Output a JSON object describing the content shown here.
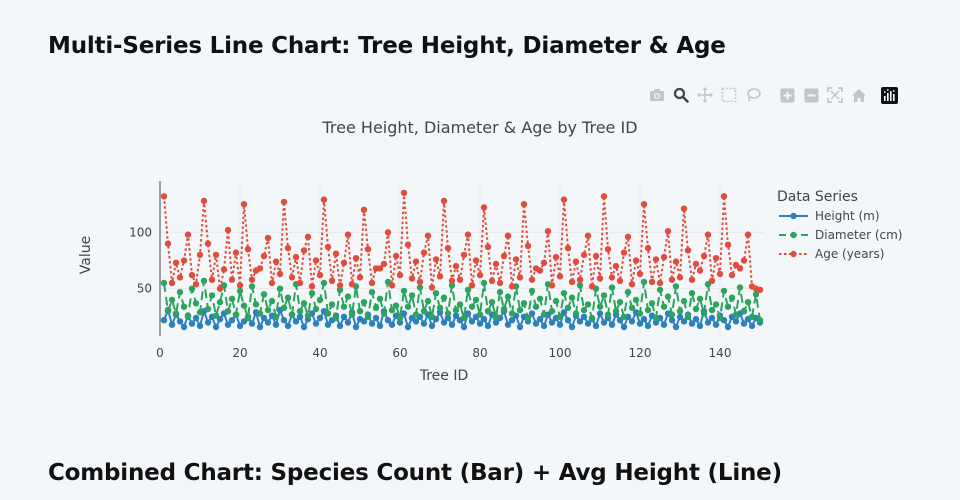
{
  "page": {
    "section_title_1": "Multi-Series Line Chart: Tree Height, Diameter & Age",
    "section_title_2": "Combined Chart: Species Count (Bar) + Avg Height (Line)"
  },
  "modebar": {
    "icons": [
      "camera-icon",
      "zoom-icon",
      "pan-icon",
      "box-select-icon",
      "lasso-icon",
      "zoom-in-icon",
      "zoom-out-icon",
      "autoscale-icon",
      "reset-axes-icon",
      "plotly-logo-icon"
    ]
  },
  "chart_data": {
    "type": "line",
    "title": "Tree Height, Diameter & Age by Tree ID",
    "xlabel": "Tree ID",
    "ylabel": "Value",
    "xlim": [
      0,
      151
    ],
    "ylim": [
      8,
      142
    ],
    "xticks": [
      0,
      20,
      40,
      60,
      80,
      100,
      120,
      140
    ],
    "yticks": [
      50,
      100
    ],
    "grid": true,
    "legend": {
      "title": "Data Series",
      "position": "right"
    },
    "x": [
      1,
      2,
      3,
      4,
      5,
      6,
      7,
      8,
      9,
      10,
      11,
      12,
      13,
      14,
      15,
      16,
      17,
      18,
      19,
      20,
      21,
      22,
      23,
      24,
      25,
      26,
      27,
      28,
      29,
      30,
      31,
      32,
      33,
      34,
      35,
      36,
      37,
      38,
      39,
      40,
      41,
      42,
      43,
      44,
      45,
      46,
      47,
      48,
      49,
      50,
      51,
      52,
      53,
      54,
      55,
      56,
      57,
      58,
      59,
      60,
      61,
      62,
      63,
      64,
      65,
      66,
      67,
      68,
      69,
      70,
      71,
      72,
      73,
      74,
      75,
      76,
      77,
      78,
      79,
      80,
      81,
      82,
      83,
      84,
      85,
      86,
      87,
      88,
      89,
      90,
      91,
      92,
      93,
      94,
      95,
      96,
      97,
      98,
      99,
      100,
      101,
      102,
      103,
      104,
      105,
      106,
      107,
      108,
      109,
      110,
      111,
      112,
      113,
      114,
      115,
      116,
      117,
      118,
      119,
      120,
      121,
      122,
      123,
      124,
      125,
      126,
      127,
      128,
      129,
      130,
      131,
      132,
      133,
      134,
      135,
      136,
      137,
      138,
      139,
      140,
      141,
      142,
      143,
      144,
      145,
      146,
      147,
      148,
      149,
      150
    ],
    "series": [
      {
        "name": "Height (m)",
        "color": "#2e7fbd",
        "dash": "solid",
        "values": [
          22,
          31,
          18,
          27,
          21,
          16,
          26,
          19,
          24,
          17,
          30,
          20,
          25,
          16,
          23,
          28,
          18,
          22,
          27,
          17,
          21,
          25,
          19,
          29,
          16,
          24,
          20,
          26,
          18,
          31,
          22,
          17,
          27,
          21,
          25,
          16,
          23,
          28,
          19,
          24,
          30,
          18,
          22,
          26,
          17,
          25,
          20,
          29,
          16,
          23,
          21,
          27,
          19,
          24,
          17,
          30,
          22,
          18,
          26,
          20,
          28,
          16,
          24,
          21,
          25,
          19,
          27,
          17,
          23,
          29,
          20,
          24,
          18,
          26,
          22,
          16,
          28,
          21,
          25,
          19,
          23,
          17,
          27,
          20,
          24,
          30,
          18,
          22,
          26,
          16,
          25,
          21,
          28,
          19,
          23,
          17,
          27,
          20,
          24,
          18,
          29,
          22,
          16,
          26,
          21,
          25,
          19,
          23,
          17,
          28,
          20,
          24,
          18,
          27,
          22,
          16,
          25,
          21,
          29,
          19,
          23,
          17,
          26,
          20,
          24,
          18,
          28,
          22,
          16,
          25,
          21,
          27,
          19,
          23,
          17,
          30,
          20,
          24,
          18,
          26,
          22,
          16,
          25,
          21,
          28,
          19,
          23,
          17,
          24,
          20
        ]
      },
      {
        "name": "Diameter (cm)",
        "color": "#2ca45e",
        "dash": "dash",
        "values": [
          55,
          30,
          40,
          28,
          47,
          34,
          25,
          50,
          37,
          29,
          57,
          32,
          44,
          26,
          38,
          53,
          30,
          41,
          27,
          48,
          35,
          24,
          52,
          36,
          28,
          45,
          31,
          39,
          25,
          50,
          33,
          42,
          27,
          54,
          30,
          37,
          26,
          46,
          32,
          40,
          55,
          28,
          36,
          24,
          49,
          34,
          43,
          27,
          52,
          30,
          38,
          25,
          47,
          33,
          41,
          28,
          56,
          31,
          35,
          24,
          48,
          34,
          44,
          27,
          51,
          30,
          39,
          25,
          46,
          33,
          42,
          28,
          53,
          31,
          36,
          24,
          49,
          34,
          40,
          27,
          55,
          30,
          38,
          25,
          47,
          32,
          43,
          28,
          52,
          31,
          37,
          24,
          48,
          34,
          41,
          27,
          54,
          30,
          39,
          25,
          46,
          33,
          42,
          28,
          53,
          31,
          36,
          24,
          50,
          34,
          44,
          27,
          51,
          30,
          38,
          25,
          47,
          33,
          40,
          28,
          56,
          31,
          37,
          24,
          49,
          34,
          43,
          27,
          52,
          30,
          39,
          25,
          46,
          32,
          41,
          28,
          54,
          31,
          36,
          24,
          48,
          34,
          42,
          27,
          51,
          30,
          38,
          25,
          45,
          22
        ]
      },
      {
        "name": "Age (years)",
        "color": "#e04d3f",
        "dash": "dot",
        "values": [
          132,
          90,
          55,
          73,
          60,
          75,
          98,
          62,
          54,
          80,
          128,
          90,
          58,
          80,
          50,
          67,
          102,
          58,
          82,
          53,
          125,
          85,
          58,
          66,
          68,
          79,
          95,
          55,
          74,
          63,
          127,
          86,
          60,
          78,
          55,
          84,
          96,
          52,
          75,
          62,
          129,
          87,
          57,
          81,
          53,
          73,
          98,
          54,
          77,
          60,
          120,
          85,
          55,
          68,
          68,
          72,
          100,
          53,
          79,
          62,
          135,
          89,
          59,
          74,
          56,
          82,
          97,
          51,
          76,
          61,
          128,
          86,
          57,
          70,
          58,
          80,
          98,
          53,
          75,
          62,
          122,
          87,
          57,
          72,
          55,
          79,
          97,
          52,
          76,
          60,
          125,
          88,
          58,
          68,
          66,
          73,
          101,
          53,
          78,
          61,
          129,
          86,
          56,
          74,
          58,
          80,
          97,
          52,
          79,
          59,
          132,
          85,
          60,
          70,
          57,
          82,
          96,
          54,
          75,
          63,
          125,
          86,
          56,
          76,
          55,
          78,
          101,
          58,
          74,
          60,
          121,
          84,
          58,
          72,
          66,
          79,
          98,
          57,
          77,
          63,
          132,
          89,
          62,
          71,
          68,
          75,
          98,
          52,
          50,
          49
        ]
      }
    ]
  }
}
